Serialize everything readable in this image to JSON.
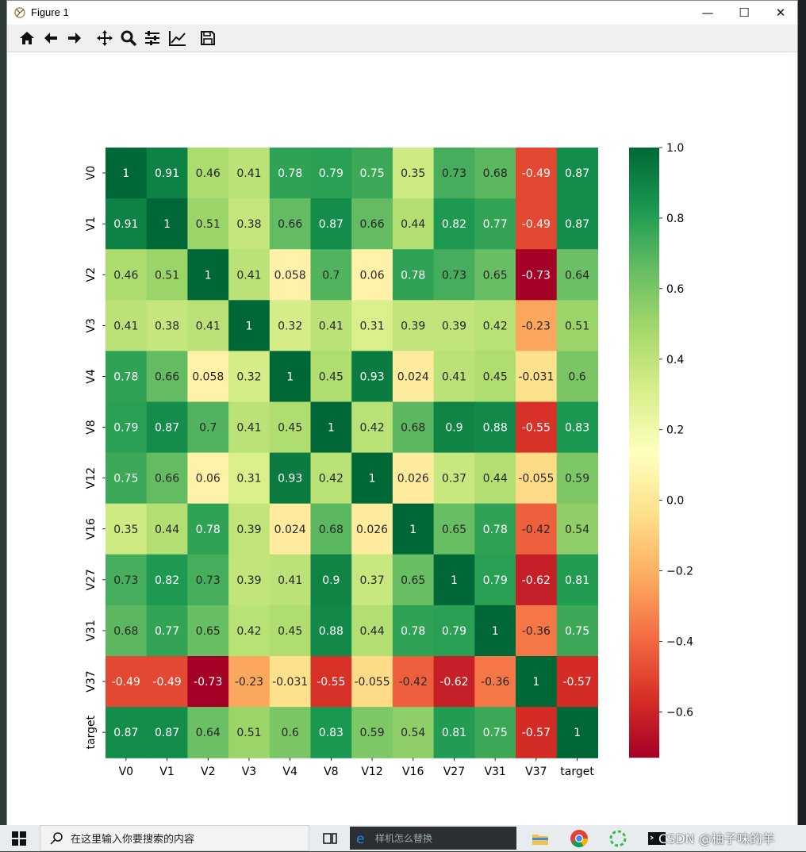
{
  "window": {
    "title": "Figure 1",
    "minimize_glyph": "—",
    "maximize_glyph": "☐",
    "close_glyph": "✕"
  },
  "toolbar": {
    "buttons": [
      "home-icon",
      "back-icon",
      "forward-icon",
      "pan-icon",
      "zoom-icon",
      "configure-subplots-icon",
      "edit-axis-icon",
      "save-icon"
    ]
  },
  "taskbar": {
    "search_placeholder": "在这里输入你要搜索的内容",
    "browser_search_placeholder": "样机怎么替换",
    "watermark": "CSDN @柚子味的羊"
  },
  "chart_data": {
    "type": "heatmap",
    "labels": [
      "V0",
      "V1",
      "V2",
      "V3",
      "V4",
      "V8",
      "V12",
      "V16",
      "V27",
      "V31",
      "V37",
      "target"
    ],
    "values": [
      [
        1,
        0.91,
        0.46,
        0.41,
        0.78,
        0.79,
        0.75,
        0.35,
        0.73,
        0.68,
        -0.49,
        0.87
      ],
      [
        0.91,
        1,
        0.51,
        0.38,
        0.66,
        0.87,
        0.66,
        0.44,
        0.82,
        0.77,
        -0.49,
        0.87
      ],
      [
        0.46,
        0.51,
        1,
        0.41,
        0.058,
        0.7,
        0.06,
        0.78,
        0.73,
        0.65,
        -0.73,
        0.64
      ],
      [
        0.41,
        0.38,
        0.41,
        1,
        0.32,
        0.41,
        0.31,
        0.39,
        0.39,
        0.42,
        -0.23,
        0.51
      ],
      [
        0.78,
        0.66,
        0.058,
        0.32,
        1,
        0.45,
        0.93,
        0.024,
        0.41,
        0.45,
        -0.031,
        0.6
      ],
      [
        0.79,
        0.87,
        0.7,
        0.41,
        0.45,
        1,
        0.42,
        0.68,
        0.9,
        0.88,
        -0.55,
        0.83
      ],
      [
        0.75,
        0.66,
        0.06,
        0.31,
        0.93,
        0.42,
        1,
        0.026,
        0.37,
        0.44,
        -0.055,
        0.59
      ],
      [
        0.35,
        0.44,
        0.78,
        0.39,
        0.024,
        0.68,
        0.026,
        1,
        0.65,
        0.78,
        -0.42,
        0.54
      ],
      [
        0.73,
        0.82,
        0.73,
        0.39,
        0.41,
        0.9,
        0.37,
        0.65,
        1,
        0.79,
        -0.62,
        0.81
      ],
      [
        0.68,
        0.77,
        0.65,
        0.42,
        0.45,
        0.88,
        0.44,
        0.78,
        0.79,
        1,
        -0.36,
        0.75
      ],
      [
        -0.49,
        -0.49,
        -0.73,
        -0.23,
        -0.031,
        -0.55,
        -0.055,
        -0.42,
        -0.62,
        -0.36,
        1,
        -0.57
      ],
      [
        0.87,
        0.87,
        0.64,
        0.51,
        0.6,
        0.83,
        0.59,
        0.54,
        0.81,
        0.75,
        -0.57,
        1
      ]
    ],
    "colormap": "RdYlGn",
    "vmin": -0.73,
    "vmax": 1.0,
    "colorbar_ticks": [
      1.0,
      0.8,
      0.6,
      0.4,
      0.2,
      0.0,
      -0.2,
      -0.4,
      -0.6
    ],
    "colorbar_tick_labels": [
      "1.0",
      "0.8",
      "0.6",
      "0.4",
      "0.2",
      "0.0",
      "−0.2",
      "−0.4",
      "−0.6"
    ],
    "annotations": true
  }
}
